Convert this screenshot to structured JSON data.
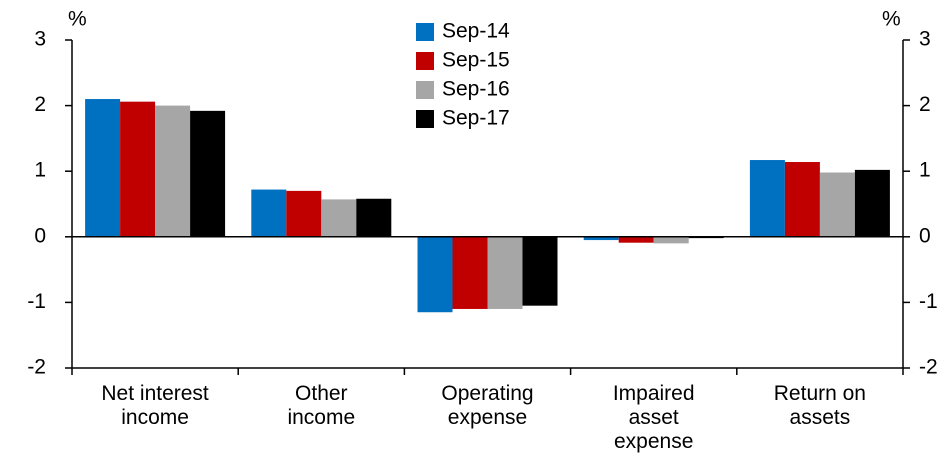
{
  "chart_data": {
    "type": "bar",
    "y_unit": "%",
    "categories": [
      "Net interest income",
      "Other income",
      "Operating expense",
      "Impaired asset expense",
      "Return on assets"
    ],
    "series": [
      {
        "name": "Sep-14",
        "color": "#0070c0",
        "values": [
          2.1,
          0.72,
          -1.15,
          -0.05,
          1.17
        ]
      },
      {
        "name": "Sep-15",
        "color": "#c00000",
        "values": [
          2.06,
          0.7,
          -1.1,
          -0.09,
          1.14
        ]
      },
      {
        "name": "Sep-16",
        "color": "#a6a6a6",
        "values": [
          2.0,
          0.57,
          -1.1,
          -0.1,
          0.98
        ]
      },
      {
        "name": "Sep-17",
        "color": "#000000",
        "values": [
          1.92,
          0.58,
          -1.05,
          -0.02,
          1.02
        ]
      }
    ],
    "ylim": [
      -2,
      3
    ],
    "yticks": [
      -2,
      -1,
      0,
      1,
      2,
      3
    ],
    "y2lim": [
      -2,
      3
    ],
    "y2ticks": [
      -2,
      -1,
      0,
      1,
      2,
      3
    ],
    "grid": false,
    "legend": "top"
  }
}
